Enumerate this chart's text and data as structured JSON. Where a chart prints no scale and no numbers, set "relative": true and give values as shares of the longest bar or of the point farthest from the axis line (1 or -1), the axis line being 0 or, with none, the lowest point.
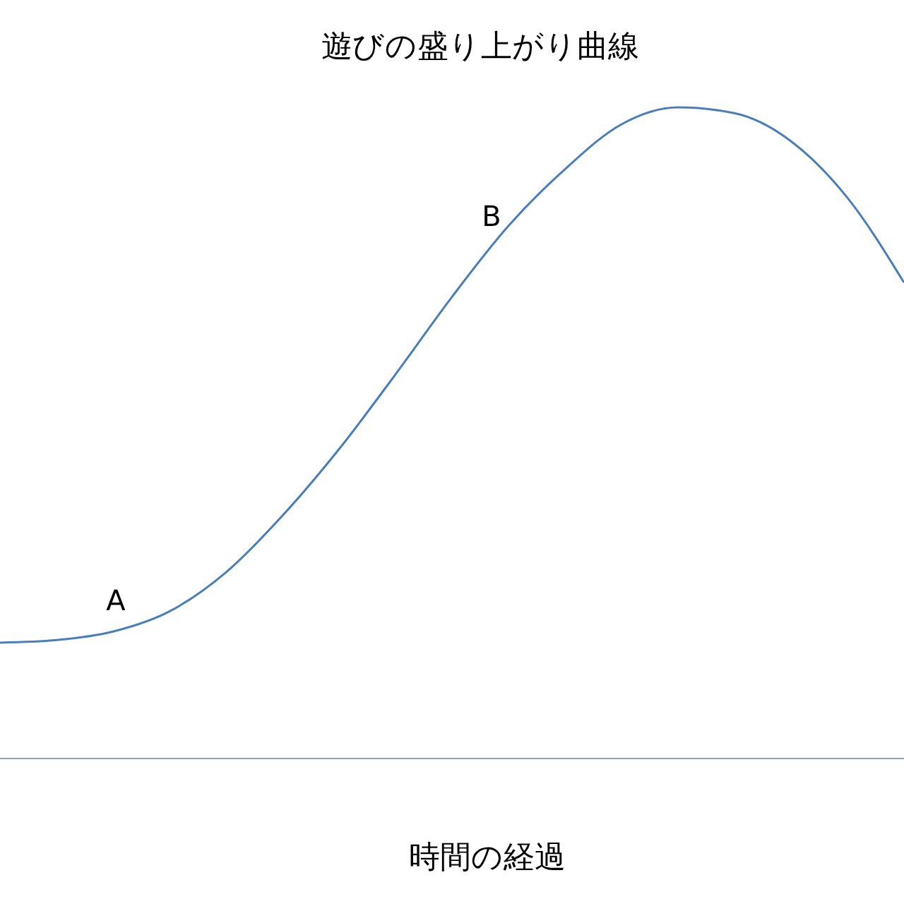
{
  "chart_data": {
    "type": "line",
    "title": "遊びの盛り上がり曲線",
    "xlabel": "時間の経過",
    "relative": true,
    "categories": [
      null,
      null,
      null,
      null,
      null,
      null,
      null,
      null,
      null,
      null,
      null,
      null,
      null,
      null,
      null,
      null,
      null
    ],
    "series": [
      {
        "color": "#4a7ebb",
        "values": [
          0.178,
          0.182,
          0.195,
          0.226,
          0.286,
          0.373,
          0.475,
          0.59,
          0.709,
          0.818,
          0.905,
          0.974,
          1,
          0.991,
          0.948,
          0.861,
          0.731
        ]
      }
    ],
    "annotations": [
      "A",
      "B"
    ],
    "marker": "none",
    "line_style": "solid"
  }
}
